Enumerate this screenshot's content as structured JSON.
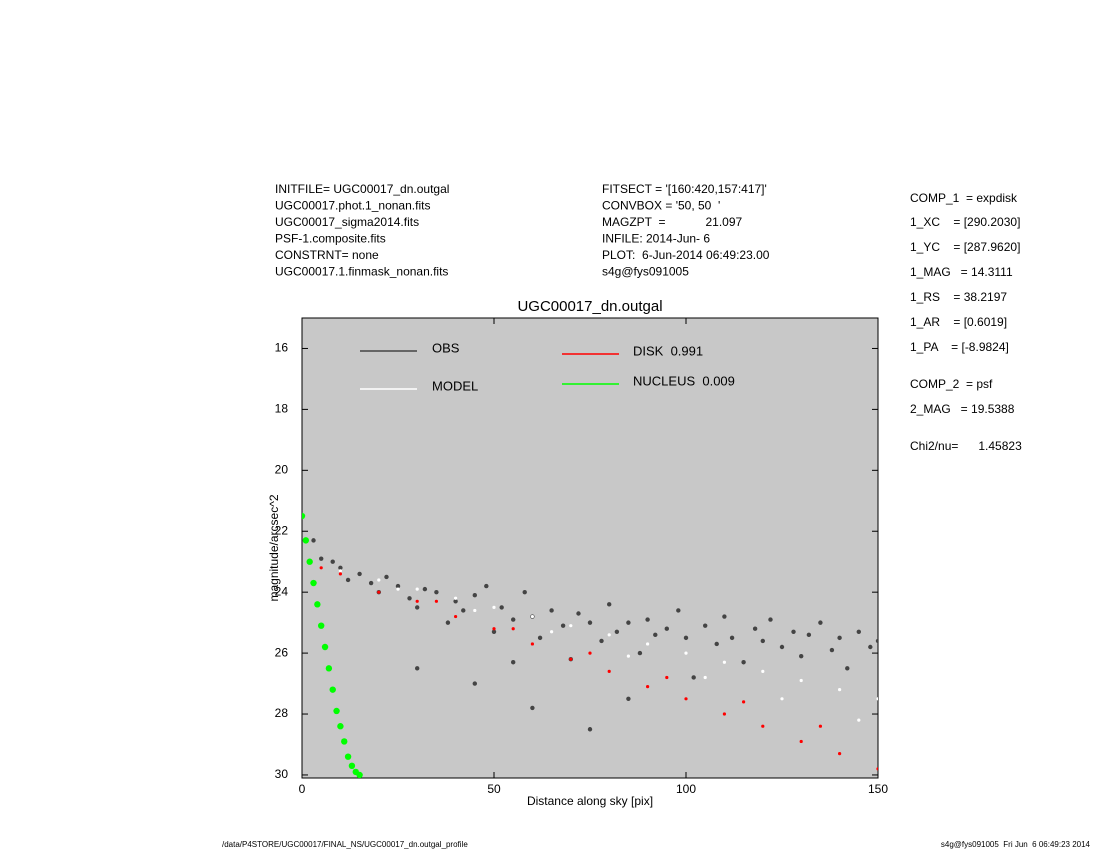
{
  "chart_data": {
    "type": "scatter",
    "title": "UGC00017_dn.outgal",
    "xlabel": "Distance along sky [pix]",
    "ylabel": "magnitude/arcsec^2",
    "xlim": [
      0,
      150
    ],
    "xticks": [
      0,
      50,
      100,
      150
    ],
    "ylim": [
      30.1,
      15
    ],
    "yticks": [
      16,
      18,
      20,
      22,
      24,
      26,
      28,
      30
    ],
    "background": "#c8c8c8",
    "series": [
      {
        "name": "OBS",
        "color": "#444444",
        "x": [
          3,
          5,
          8,
          10,
          12,
          15,
          18,
          20,
          22,
          25,
          28,
          30,
          32,
          35,
          38,
          40,
          42,
          45,
          48,
          50,
          52,
          55,
          58,
          60,
          62,
          65,
          68,
          70,
          72,
          75,
          78,
          80,
          82,
          85,
          88,
          90,
          92,
          95,
          98,
          100,
          102,
          105,
          108,
          110,
          112,
          115,
          118,
          120,
          122,
          125,
          128,
          130,
          132,
          135,
          138,
          140,
          142,
          145,
          148,
          150,
          30,
          45,
          60,
          75,
          55,
          85
        ],
        "values": [
          22.3,
          22.9,
          23.0,
          23.2,
          23.6,
          23.4,
          23.7,
          24.0,
          23.5,
          23.8,
          24.2,
          24.5,
          23.9,
          24.0,
          25.0,
          24.3,
          24.6,
          24.1,
          23.8,
          25.3,
          24.5,
          24.9,
          24.0,
          24.8,
          25.5,
          24.6,
          25.1,
          26.2,
          24.7,
          25.0,
          25.6,
          24.4,
          25.3,
          25.0,
          26.0,
          24.9,
          25.4,
          25.2,
          24.6,
          25.5,
          26.8,
          25.1,
          25.7,
          24.8,
          25.5,
          26.3,
          25.2,
          25.6,
          24.9,
          25.8,
          25.3,
          26.1,
          25.4,
          25.0,
          25.9,
          25.5,
          26.5,
          25.3,
          25.8,
          25.6,
          26.5,
          27.0,
          27.8,
          28.5,
          26.3,
          27.5
        ]
      },
      {
        "name": "MODEL",
        "color": "#ffffff",
        "x": [
          10,
          20,
          30,
          40,
          50,
          60,
          70,
          80,
          90,
          100,
          110,
          120,
          130,
          140,
          150,
          25,
          45,
          65,
          85,
          105,
          125,
          145
        ],
        "values": [
          23.3,
          23.6,
          23.9,
          24.2,
          24.5,
          24.8,
          25.1,
          25.4,
          25.7,
          26.0,
          26.3,
          26.6,
          26.9,
          27.2,
          27.5,
          23.9,
          24.6,
          25.3,
          26.1,
          26.8,
          27.5,
          28.2
        ]
      },
      {
        "name": "DISK  0.991",
        "color": "#ff0000",
        "x": [
          5,
          10,
          20,
          30,
          40,
          50,
          60,
          70,
          80,
          90,
          100,
          110,
          120,
          130,
          140,
          150,
          35,
          55,
          75,
          95,
          115,
          135
        ],
        "values": [
          23.2,
          23.4,
          24.0,
          24.3,
          24.8,
          25.2,
          25.7,
          26.2,
          26.6,
          27.1,
          27.5,
          28.0,
          28.4,
          28.9,
          29.3,
          29.8,
          24.3,
          25.2,
          26.0,
          26.8,
          27.6,
          28.4
        ]
      },
      {
        "name": "NUCLEUS  0.009",
        "color": "#00ff00",
        "x": [
          0,
          1,
          2,
          3,
          4,
          5,
          6,
          7,
          8,
          9,
          10,
          11,
          12,
          13,
          14,
          15
        ],
        "values": [
          21.5,
          22.3,
          23.0,
          23.7,
          24.4,
          25.1,
          25.8,
          26.5,
          27.2,
          27.9,
          28.4,
          28.9,
          29.4,
          29.7,
          29.9,
          30.0
        ]
      }
    ]
  },
  "info": {
    "left": [
      "INITFILE= UGC00017_dn.outgal",
      "UGC00017.phot.1_nonan.fits",
      "UGC00017_sigma2014.fits",
      "PSF-1.composite.fits",
      "CONSTRNT= none",
      "UGC00017.1.finmask_nonan.fits"
    ],
    "middle": [
      "FITSECT = '[160:420,157:417]'",
      "CONVBOX = '50, 50  '",
      "MAGZPT  =            21.097",
      "INFILE: 2014-Jun- 6",
      "PLOT:  6-Jun-2014 06:49:23.00",
      "s4g@fys091005"
    ],
    "right": [
      "COMP_1  = expdisk",
      "1_XC    = [290.2030]",
      "1_YC    = [287.9620]",
      "1_MAG   = 14.3111",
      "1_RS    = 38.2197",
      "1_AR    = [0.6019]",
      "1_PA    = [-8.9824]",
      "COMP_2  = psf",
      "2_MAG   = 19.5388",
      "Chi2/nu=      1.45823"
    ]
  },
  "footer": {
    "left": "/data/P4STORE/UGC00017/FINAL_NS/UGC00017_dn.outgal_profile",
    "right": "s4g@fys091005  Fri Jun  6 06:49:23 2014"
  }
}
